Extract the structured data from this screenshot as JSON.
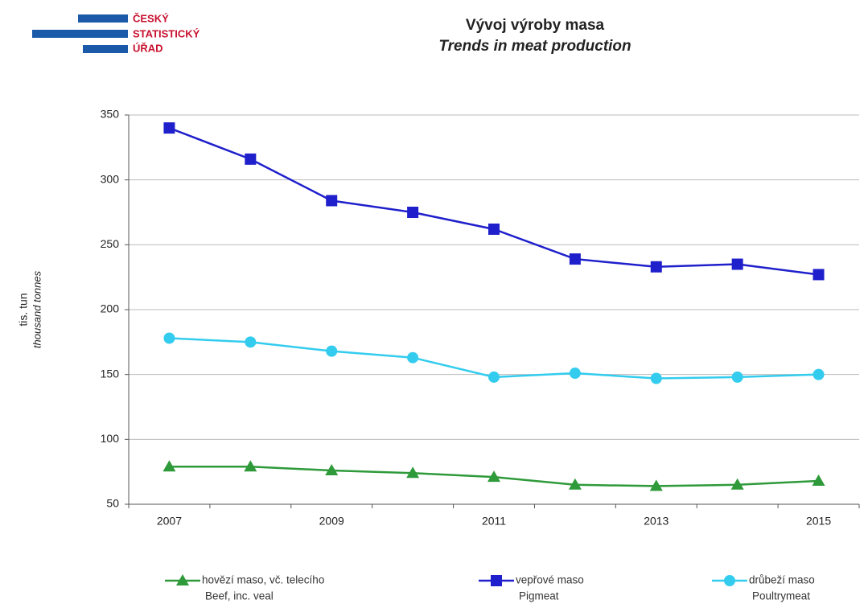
{
  "logo": [
    "ČESKÝ",
    "STATISTICKÝ",
    "ÚŘAD"
  ],
  "chart_data": {
    "type": "line",
    "title": "Vývoj výroby masa",
    "subtitle": "Trends in meat production",
    "y_label": "tis. tun",
    "y_label_en": "thousand tonnes",
    "categories": [
      "2007",
      null,
      "2009",
      null,
      "2011",
      null,
      "2013",
      null,
      "2015"
    ],
    "series": [
      {
        "name": "hovězí maso, vč. telecího",
        "name_en": "Beef, inc. veal",
        "color": "#2e9a3a",
        "marker": "triangle",
        "values": [
          79,
          79,
          76,
          74,
          71,
          65,
          64,
          65,
          68
        ]
      },
      {
        "name": "vepřové maso",
        "name_en": "Pigmeat",
        "color": "#1f1fcc",
        "marker": "square",
        "values": [
          340,
          316,
          284,
          275,
          262,
          239,
          233,
          235,
          227
        ]
      },
      {
        "name": "drůbeží maso",
        "name_en": "Poultrymeat",
        "color": "#33ccee",
        "marker": "circle",
        "values": [
          178,
          175,
          168,
          163,
          148,
          151,
          147,
          148,
          150
        ]
      }
    ],
    "ylim": [
      50,
      350
    ],
    "yticks": [
      50,
      100,
      150,
      200,
      250,
      300,
      350
    ],
    "grid": true,
    "legend": "bottom"
  }
}
